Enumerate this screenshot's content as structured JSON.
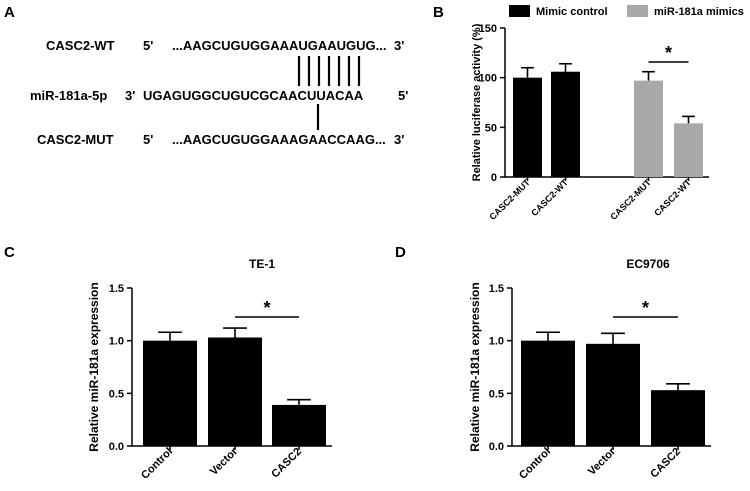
{
  "figure": {
    "panel_a": {
      "letter": "A",
      "rows": [
        {
          "name": "CASC2-WT",
          "p5": "5'",
          "seq": "...AAGCUGUGGAAAUGAAUGUG...",
          "p3": "3'"
        },
        {
          "name": "miR-181a-5p",
          "p5": "3'",
          "seq": "UGAGUGGCUGUCGCAACUUACAA",
          "p3": "5'"
        },
        {
          "name": "CASC2-MUT",
          "p5": "5'",
          "seq": "...AAGCUGUGGAAAGAACCAAG...",
          "p3": "3'"
        }
      ]
    }
  },
  "chart_data": [
    {
      "panel": "B",
      "type": "bar",
      "title": "",
      "ylabel": "Relative luciferase activity (%)",
      "ylim": [
        0,
        150
      ],
      "yticks": [
        "0",
        "50",
        "100",
        "150"
      ],
      "categories": [
        "CASC2-MUT",
        "CASC2-WT",
        "CASC2-MUT",
        "CASC2-WT"
      ],
      "values": [
        100,
        106,
        97,
        54
      ],
      "errors": [
        10,
        8,
        9,
        7
      ],
      "bar_series": [
        0,
        0,
        1,
        1
      ],
      "series": [
        {
          "name": "Mimic control",
          "color": "#000000"
        },
        {
          "name": "miR-181a mimics",
          "color": "#a8a8a8"
        }
      ],
      "legend": "top",
      "significance": {
        "label": "*",
        "between": [
          2,
          3
        ]
      }
    },
    {
      "panel": "C",
      "type": "bar",
      "title": "TE-1",
      "ylabel": "Relative miR-181a expression",
      "ylim": [
        0,
        1.5
      ],
      "yticks": [
        "0.0",
        "0.5",
        "1.0",
        "1.5"
      ],
      "categories": [
        "Control",
        "Vector",
        "CASC2"
      ],
      "values": [
        1.0,
        1.03,
        0.39
      ],
      "errors": [
        0.08,
        0.09,
        0.05
      ],
      "color": "#000000",
      "significance": {
        "label": "*",
        "between": [
          1,
          2
        ]
      }
    },
    {
      "panel": "D",
      "type": "bar",
      "title": "EC9706",
      "ylabel": "Relative miR-181a expression",
      "ylim": [
        0,
        1.5
      ],
      "yticks": [
        "0.0",
        "0.5",
        "1.0",
        "1.5"
      ],
      "categories": [
        "Control",
        "Vector",
        "CASC2"
      ],
      "values": [
        1.0,
        0.97,
        0.53
      ],
      "errors": [
        0.08,
        0.1,
        0.06
      ],
      "color": "#000000",
      "significance": {
        "label": "*",
        "between": [
          1,
          2
        ]
      }
    }
  ]
}
